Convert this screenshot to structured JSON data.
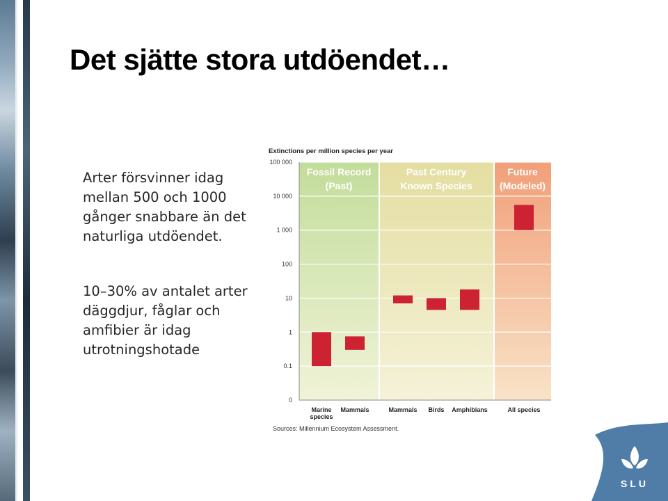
{
  "slide": {
    "title": "Det sjätte stora utdöendet…",
    "paragraph_1": "Arter försvinner idag mellan 500 och 1000 gånger snabbare än det naturliga utdöendet.",
    "paragraph_2": "10–30% av antalet arter däggdjur, fåglar och amfibier är idag utrotningshotade",
    "logo_text": "SLU"
  },
  "colors": {
    "bar": "#cc2231",
    "fossil_band": "#c5df9e",
    "past_band": "#e6e0a6",
    "future_band": "#f2a57f",
    "band_header_text": "#ffffff",
    "logo_blue": "#4f7da7"
  },
  "chart_data": {
    "type": "bar",
    "subtype": "floating range",
    "ylabel": "Extinctions per million species per year",
    "yscale": "log",
    "ytick_labels": [
      "0",
      "0.1",
      "1",
      "10",
      "100",
      "1 000",
      "10 000",
      "100 000"
    ],
    "categories": [
      "Marine species",
      "Mammals",
      "Mammals",
      "Birds",
      "Amphibians",
      "All species"
    ],
    "series": [
      {
        "values": [
          [
            0.1,
            1
          ],
          [
            0.3,
            0.75
          ],
          [
            7,
            12
          ],
          [
            4.5,
            10
          ],
          [
            4.5,
            18
          ],
          [
            1000,
            5500
          ]
        ]
      }
    ],
    "groups": [
      {
        "label_line1": "Fossil Record",
        "label_line2": "(Past)"
      },
      {
        "label_line1": "Past Century",
        "label_line2": "Known Species"
      },
      {
        "label_line1": "Future",
        "label_line2": "(Modeled)"
      }
    ],
    "source": "Sources: Millennium Ecosystem Assessment.",
    "grid": true,
    "legend": "none"
  }
}
